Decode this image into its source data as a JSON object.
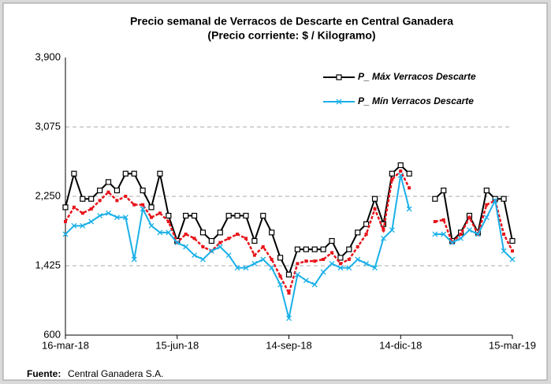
{
  "chart_data": {
    "type": "line",
    "title": "Precio semanal de Verracos de Descarte en Central Ganadera",
    "subtitle": "(Precio corriente: $ / Kilogramo)",
    "categories": [
      "16-mar-18",
      null,
      null,
      null,
      null,
      null,
      null,
      null,
      null,
      null,
      null,
      null,
      null,
      "15-jun-18",
      null,
      null,
      null,
      null,
      null,
      null,
      null,
      null,
      null,
      null,
      null,
      null,
      "14-sep-18",
      null,
      null,
      null,
      null,
      null,
      null,
      null,
      null,
      null,
      null,
      null,
      null,
      "14-dic-18",
      null,
      null,
      null,
      null,
      null,
      null,
      null,
      null,
      null,
      null,
      null,
      null,
      "15-mar-19"
    ],
    "series": [
      {
        "name": "P_ Máx Verracos Descarte",
        "color": "#000000",
        "marker": "square",
        "values": [
          2120,
          2520,
          2220,
          2220,
          2320,
          2420,
          2320,
          2520,
          2520,
          2320,
          2120,
          2520,
          2020,
          1720,
          2020,
          2020,
          1820,
          1720,
          1820,
          2020,
          2020,
          2020,
          1720,
          2020,
          1820,
          1520,
          1320,
          1620,
          1620,
          1620,
          1620,
          1720,
          1520,
          1620,
          1820,
          1920,
          2220,
          1920,
          2520,
          2620,
          2520,
          null,
          null,
          2220,
          2320,
          1720,
          1820,
          2020,
          1820,
          2320,
          2220,
          2220,
          1720
        ]
      },
      {
        "color": "#e8141b",
        "marker": "dot",
        "values": [
          1950,
          2120,
          2050,
          2100,
          2200,
          2300,
          2200,
          2250,
          2150,
          2150,
          2000,
          2050,
          1950,
          1700,
          1800,
          1750,
          1650,
          1600,
          1700,
          1750,
          1800,
          1750,
          1550,
          1650,
          1500,
          1300,
          1100,
          1450,
          1480,
          1480,
          1500,
          1580,
          1450,
          1500,
          1650,
          1800,
          2100,
          1850,
          2450,
          2550,
          2350,
          null,
          null,
          1950,
          1970,
          1700,
          1800,
          2000,
          1800,
          2150,
          2200,
          1800,
          1600
        ]
      },
      {
        "name": "P_ Mín Verracos Descarte",
        "color": "#1ab0e8",
        "marker": "x",
        "values": [
          1800,
          1900,
          1900,
          1950,
          2020,
          2050,
          2000,
          2000,
          1500,
          2100,
          1900,
          1820,
          1820,
          1700,
          1650,
          1550,
          1500,
          1600,
          1650,
          1550,
          1400,
          1400,
          1450,
          1500,
          1400,
          1200,
          800,
          1320,
          1250,
          1200,
          1350,
          1450,
          1400,
          1400,
          1500,
          1450,
          1400,
          1750,
          1850,
          2500,
          2100,
          null,
          null,
          1800,
          1800,
          1700,
          1750,
          1850,
          1800,
          2000,
          2200,
          1600,
          1500
        ]
      }
    ],
    "ylim": [
      600,
      3900
    ],
    "yticks": [
      600,
      {
        "value": 1425,
        "label": "1,425"
      },
      {
        "value": 2250,
        "label": "2,250"
      },
      {
        "value": 3075,
        "label": "3,075"
      },
      {
        "value": 3900,
        "label": "3,900"
      }
    ],
    "grid": true,
    "legend": "upper right",
    "source_label": "Fuente:",
    "source": "Central Ganadera S.A."
  }
}
